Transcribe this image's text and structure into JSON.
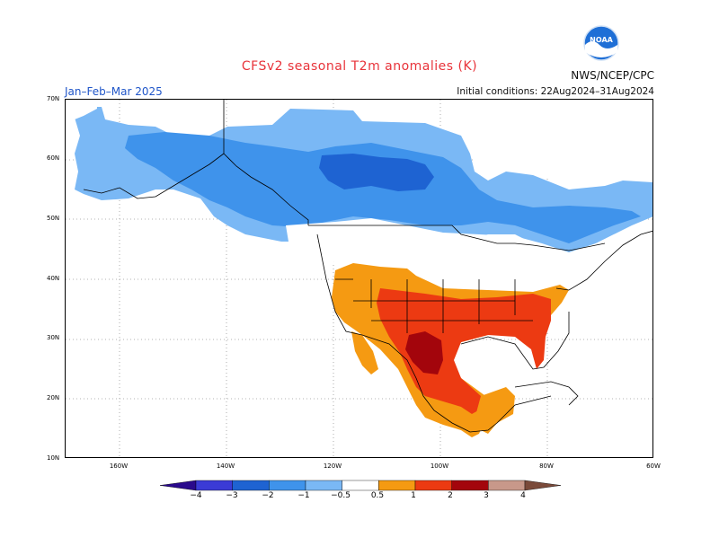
{
  "title": "CFSv2 seasonal T2m anomalies (K)",
  "season": "Jan–Feb–Mar 2025",
  "initial_conditions": "Initial conditions: 22Aug2024–31Aug2024",
  "organization": "NWS/NCEP/CPC",
  "logo_text": "NOAA",
  "lat_labels": [
    "70N",
    "60N",
    "50N",
    "40N",
    "30N",
    "20N",
    "10N"
  ],
  "lon_labels": [
    "160W",
    "140W",
    "120W",
    "100W",
    "80W",
    "60W"
  ],
  "colorbar": {
    "ticks": [
      "−4",
      "−3",
      "−2",
      "−1",
      "−0.5",
      "0.5",
      "1",
      "2",
      "3",
      "4"
    ],
    "bins": [
      {
        "range": "< -4",
        "color": "#2a0a8c"
      },
      {
        "range": "-4 to -3",
        "color": "#3b3bd6"
      },
      {
        "range": "-3 to -2",
        "color": "#1e63d2"
      },
      {
        "range": "-2 to -1",
        "color": "#3f93eb"
      },
      {
        "range": "-1 to -0.5",
        "color": "#7ab8f5"
      },
      {
        "range": "-0.5 to 0.5",
        "color": "#ffffff"
      },
      {
        "range": "0.5 to 1",
        "color": "#f59a12"
      },
      {
        "range": "1 to 2",
        "color": "#ec3a12"
      },
      {
        "range": "2 to 3",
        "color": "#a3050c"
      },
      {
        "range": "3 to 4",
        "color": "#c8988a"
      },
      {
        "range": "> 4",
        "color": "#7a4a3a"
      }
    ]
  }
}
